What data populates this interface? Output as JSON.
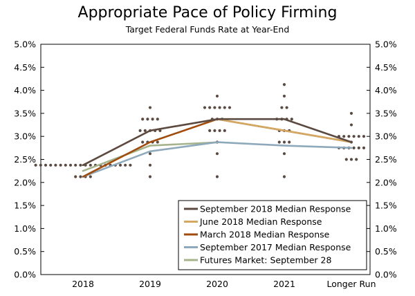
{
  "chart_data": {
    "type": "line",
    "title": "Appropriate Pace of Policy Firming",
    "subtitle": "Target Federal Funds Rate at Year-End",
    "categories": [
      "2018",
      "2019",
      "2020",
      "2021",
      "Longer Run"
    ],
    "y_ticks": [
      "0.0%",
      "0.5%",
      "1.0%",
      "1.5%",
      "2.0%",
      "2.5%",
      "3.0%",
      "3.5%",
      "4.0%",
      "4.5%",
      "5.0%"
    ],
    "ylim": [
      0,
      5
    ],
    "grid": false,
    "legend_position": "bottom-right",
    "series": [
      {
        "name": "September 2018 Median Response",
        "color": "#5b4a42",
        "x": [
          0,
          1,
          2,
          3,
          4
        ],
        "values": [
          2.375,
          3.125,
          3.375,
          3.375,
          2.875
        ]
      },
      {
        "name": "June 2018 Median Response",
        "color": "#d4a862",
        "x": [
          0,
          1,
          2,
          4
        ],
        "values": [
          2.375,
          3.125,
          3.375,
          2.875
        ]
      },
      {
        "name": "March 2018 Median Response",
        "color": "#a04c0e",
        "x": [
          0,
          1,
          2,
          4
        ],
        "values": [
          2.125,
          2.875,
          3.375,
          2.875
        ]
      },
      {
        "name": "September 2017 Median Response",
        "color": "#8ea9bb",
        "x": [
          0,
          1,
          2,
          3,
          4
        ],
        "values": [
          2.125,
          2.675,
          2.875,
          2.8,
          2.75
        ]
      },
      {
        "name": "Futures Market: September 28",
        "color": "#a5b38c",
        "x": [
          0,
          1,
          2
        ],
        "values": [
          2.25,
          2.8,
          2.87
        ]
      }
    ],
    "dots": {
      "color": "#5b4a42",
      "groups": [
        {
          "x": 0,
          "values": [
            2.375,
            2.375,
            2.375,
            2.375,
            2.375,
            2.375,
            2.375,
            2.375,
            2.375,
            2.375,
            2.375,
            2.375,
            2.375,
            2.375,
            2.375,
            2.375,
            2.375,
            2.375,
            2.375,
            2.375,
            2.125,
            2.125,
            2.125,
            2.125
          ]
        },
        {
          "x": 1,
          "values": [
            3.625,
            3.375,
            3.375,
            3.375,
            3.375,
            3.125,
            3.125,
            3.125,
            3.125,
            3.125,
            2.875,
            2.875,
            2.875,
            2.875,
            2.625,
            2.375,
            2.125
          ]
        },
        {
          "x": 2,
          "values": [
            3.875,
            3.625,
            3.625,
            3.625,
            3.625,
            3.625,
            3.625,
            3.375,
            3.375,
            3.375,
            3.125,
            3.125,
            3.125,
            3.125,
            2.875,
            2.625,
            2.125
          ]
        },
        {
          "x": 3,
          "values": [
            4.125,
            3.875,
            3.625,
            3.625,
            3.375,
            3.375,
            3.375,
            3.375,
            3.125,
            3.125,
            3.125,
            2.875,
            2.875,
            2.875,
            2.625,
            2.125
          ]
        },
        {
          "x": 4,
          "values": [
            3.5,
            3.25,
            3.0,
            3.0,
            3.0,
            3.0,
            3.0,
            3.0,
            2.875,
            2.75,
            2.75,
            2.75,
            2.75,
            2.75,
            2.75,
            2.5,
            2.5,
            2.5
          ]
        }
      ]
    }
  }
}
